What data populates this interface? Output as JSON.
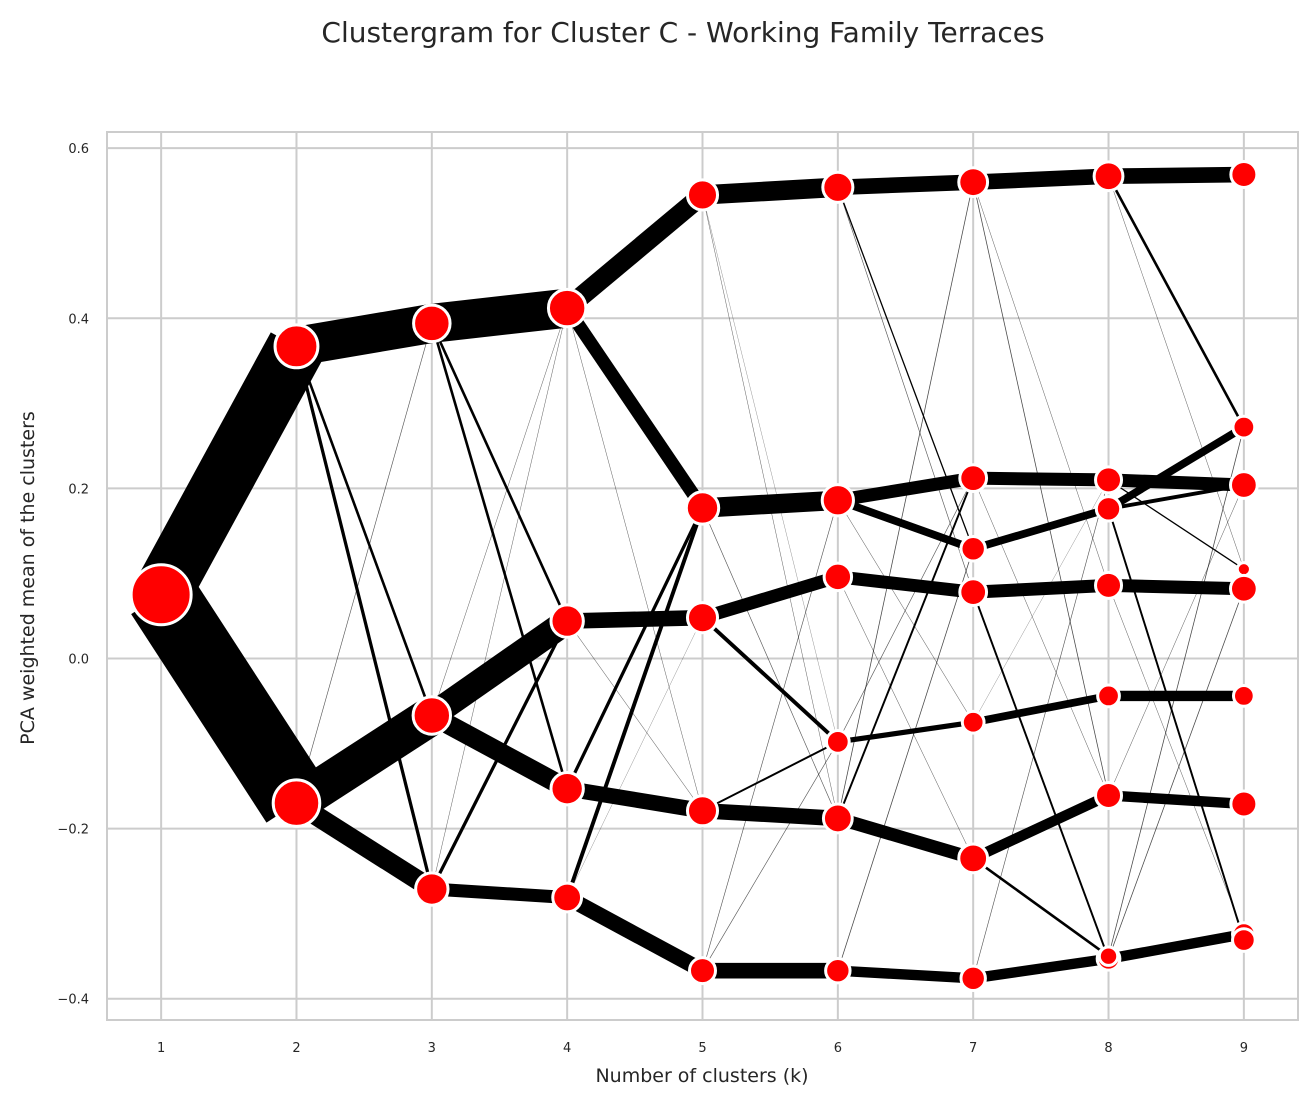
{
  "chart_data": {
    "type": "line",
    "title": "Clustergram for Cluster C - Working Family Terraces",
    "xlabel": "Number of clusters (k)",
    "ylabel": "PCA weighted mean of the clusters",
    "xlim": [
      0.6,
      9.4
    ],
    "ylim": [
      -0.425,
      0.619
    ],
    "xticks": [
      "1",
      "2",
      "3",
      "4",
      "5",
      "6",
      "7",
      "8",
      "9"
    ],
    "yticks": [
      {
        "v": 0.6,
        "label": "0.6"
      },
      {
        "v": 0.4,
        "label": "0.4"
      },
      {
        "v": 0.2,
        "label": "0.2"
      },
      {
        "v": 0.0,
        "label": "0.0"
      },
      {
        "v": -0.2,
        "label": "−0.2"
      },
      {
        "v": -0.4,
        "label": "−0.4"
      }
    ],
    "grid": true,
    "node_color": "#ff0000",
    "edge_color": "#000000",
    "nodes": {
      "1": [
        [
          0.075,
          100
        ]
      ],
      "2": [
        [
          0.367,
          45
        ],
        [
          -0.17,
          55
        ]
      ],
      "3": [
        [
          0.394,
          30
        ],
        [
          -0.067,
          32
        ],
        [
          -0.271,
          22
        ]
      ],
      "4": [
        [
          0.412,
          32
        ],
        [
          0.044,
          22
        ],
        [
          -0.153,
          22
        ],
        [
          -0.281,
          16
        ]
      ],
      "5": [
        [
          0.545,
          18
        ],
        [
          0.177,
          22
        ],
        [
          0.048,
          18
        ],
        [
          -0.179,
          18
        ],
        [
          -0.367,
          12
        ]
      ],
      "6": [
        [
          0.554,
          18
        ],
        [
          0.186,
          20
        ],
        [
          0.096,
          14
        ],
        [
          -0.098,
          8
        ],
        [
          -0.188,
          16
        ],
        [
          -0.367,
          10
        ]
      ],
      "7": [
        [
          0.56,
          16
        ],
        [
          0.212,
          13
        ],
        [
          0.129,
          10
        ],
        [
          0.078,
          13
        ],
        [
          -0.075,
          7
        ],
        [
          -0.235,
          16
        ],
        [
          -0.376,
          10
        ]
      ],
      "8": [
        [
          0.567,
          16
        ],
        [
          0.21,
          12
        ],
        [
          0.176,
          10
        ],
        [
          0.086,
          12
        ],
        [
          -0.044,
          7
        ],
        [
          -0.161,
          12
        ],
        [
          -0.353,
          8
        ],
        [
          -0.35,
          4
        ]
      ],
      "9": [
        [
          0.569,
          12
        ],
        [
          0.272,
          7
        ],
        [
          0.204,
          13
        ],
        [
          0.105,
          1
        ],
        [
          0.082,
          13
        ],
        [
          -0.044,
          6
        ],
        [
          -0.171,
          12
        ],
        [
          -0.324,
          8
        ],
        [
          -0.331,
          8
        ]
      ]
    },
    "edges": [
      [
        1,
        0,
        0,
        45
      ],
      [
        1,
        0,
        1,
        55
      ],
      [
        2,
        0,
        0,
        30
      ],
      [
        2,
        1,
        1,
        30
      ],
      [
        2,
        1,
        2,
        15
      ],
      [
        2,
        0,
        1,
        2
      ],
      [
        2,
        0,
        2,
        2.5
      ],
      [
        2,
        1,
        0,
        0.5
      ],
      [
        2,
        0,
        2,
        2
      ],
      [
        3,
        0,
        0,
        30
      ],
      [
        3,
        1,
        1,
        20
      ],
      [
        3,
        1,
        2,
        15
      ],
      [
        3,
        2,
        3,
        10
      ],
      [
        3,
        0,
        1,
        2
      ],
      [
        3,
        0,
        2,
        2
      ],
      [
        3,
        2,
        1,
        2.5
      ],
      [
        3,
        2,
        0,
        0.4
      ],
      [
        3,
        1,
        0,
        0.4
      ],
      [
        4,
        0,
        0,
        15
      ],
      [
        4,
        0,
        1,
        10
      ],
      [
        4,
        1,
        2,
        12
      ],
      [
        4,
        2,
        3,
        12
      ],
      [
        4,
        3,
        4,
        12
      ],
      [
        4,
        3,
        1,
        3
      ],
      [
        4,
        2,
        1,
        2.5
      ],
      [
        4,
        1,
        3,
        0.4
      ],
      [
        4,
        0,
        3,
        0.4
      ],
      [
        4,
        3,
        2,
        0.3
      ],
      [
        5,
        0,
        0,
        15
      ],
      [
        5,
        1,
        1,
        15
      ],
      [
        5,
        2,
        2,
        10
      ],
      [
        5,
        3,
        4,
        12
      ],
      [
        5,
        4,
        5,
        12
      ],
      [
        5,
        2,
        3,
        3
      ],
      [
        5,
        3,
        3,
        1.5
      ],
      [
        5,
        1,
        4,
        0.5
      ],
      [
        5,
        0,
        4,
        0.4
      ],
      [
        5,
        4,
        1,
        0.5
      ],
      [
        5,
        0,
        3,
        0.3
      ],
      [
        5,
        4,
        3,
        0.5
      ],
      [
        6,
        0,
        0,
        12
      ],
      [
        6,
        1,
        1,
        10
      ],
      [
        6,
        1,
        2,
        6
      ],
      [
        6,
        2,
        3,
        10
      ],
      [
        6,
        3,
        4,
        4
      ],
      [
        6,
        4,
        5,
        10
      ],
      [
        6,
        5,
        6,
        8
      ],
      [
        6,
        4,
        1,
        1.5
      ],
      [
        6,
        4,
        0,
        0.6
      ],
      [
        6,
        0,
        2,
        1
      ],
      [
        6,
        0,
        3,
        0.5
      ],
      [
        6,
        3,
        1,
        0.5
      ],
      [
        6,
        5,
        2,
        0.6
      ],
      [
        6,
        2,
        5,
        0.4
      ],
      [
        6,
        1,
        4,
        0.4
      ],
      [
        7,
        0,
        0,
        12
      ],
      [
        7,
        1,
        1,
        10
      ],
      [
        7,
        2,
        2,
        6
      ],
      [
        7,
        3,
        3,
        10
      ],
      [
        7,
        4,
        4,
        6
      ],
      [
        7,
        5,
        5,
        8
      ],
      [
        7,
        6,
        6,
        8
      ],
      [
        7,
        5,
        7,
        2
      ],
      [
        7,
        3,
        6,
        1.5
      ],
      [
        7,
        0,
        5,
        0.6
      ],
      [
        7,
        0,
        3,
        0.4
      ],
      [
        7,
        6,
        1,
        0.5
      ],
      [
        7,
        1,
        5,
        0.4
      ],
      [
        7,
        4,
        1,
        0.3
      ],
      [
        8,
        0,
        0,
        12
      ],
      [
        8,
        1,
        2,
        10
      ],
      [
        8,
        2,
        1,
        6
      ],
      [
        8,
        2,
        2,
        3
      ],
      [
        8,
        3,
        4,
        10
      ],
      [
        8,
        4,
        5,
        8
      ],
      [
        8,
        5,
        6,
        8
      ],
      [
        8,
        6,
        7,
        8
      ],
      [
        8,
        0,
        1,
        2
      ],
      [
        8,
        2,
        8,
        1.5
      ],
      [
        8,
        1,
        3,
        1
      ],
      [
        8,
        6,
        4,
        0.6
      ],
      [
        8,
        7,
        1,
        0.6
      ],
      [
        8,
        5,
        2,
        0.4
      ],
      [
        8,
        3,
        7,
        0.4
      ],
      [
        8,
        0,
        3,
        0.4
      ]
    ]
  }
}
